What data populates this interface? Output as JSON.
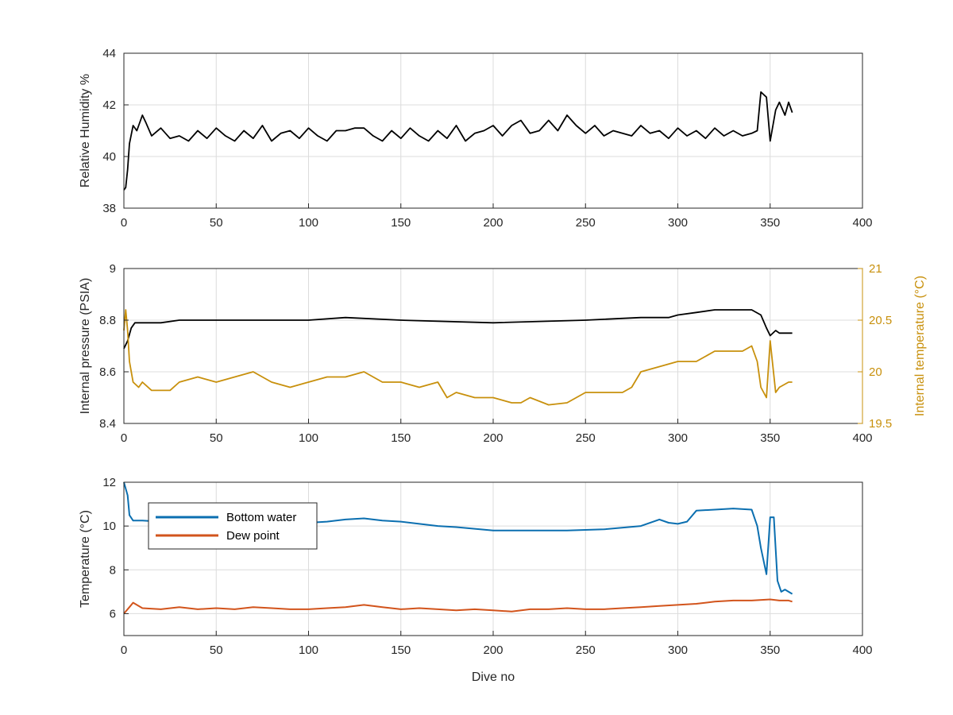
{
  "colors": {
    "frame": "#262626",
    "grid": "#dcdcdc",
    "black_series": "#000000",
    "temp_series": "#c8900c",
    "bottom_water": "#0b6fb0",
    "dew_point": "#d2541c"
  },
  "chart_data": [
    {
      "type": "line",
      "title": "",
      "xlabel": "",
      "ylabel": "Relative Humidity %",
      "xlim": [
        0,
        400
      ],
      "ylim": [
        38,
        44
      ],
      "xticks": [
        "0",
        "50",
        "100",
        "150",
        "200",
        "250",
        "300",
        "350",
        "400"
      ],
      "yticks": [
        "38",
        "40",
        "42",
        "44"
      ],
      "grid": true,
      "series": [
        {
          "name": "",
          "color": "#000000",
          "x": [
            0,
            1,
            2,
            3,
            5,
            7,
            10,
            12,
            15,
            20,
            25,
            30,
            35,
            40,
            45,
            50,
            55,
            60,
            65,
            70,
            75,
            80,
            85,
            90,
            95,
            100,
            105,
            110,
            115,
            120,
            125,
            130,
            135,
            140,
            145,
            150,
            155,
            160,
            165,
            170,
            175,
            180,
            185,
            190,
            195,
            200,
            205,
            210,
            215,
            220,
            225,
            230,
            235,
            240,
            245,
            250,
            255,
            260,
            265,
            270,
            275,
            280,
            285,
            290,
            295,
            300,
            305,
            310,
            315,
            320,
            325,
            330,
            335,
            340,
            343,
            345,
            348,
            350,
            353,
            355,
            358,
            360,
            362
          ],
          "y": [
            38.7,
            38.8,
            39.5,
            40.5,
            41.2,
            41.0,
            41.6,
            41.3,
            40.8,
            41.1,
            40.7,
            40.8,
            40.6,
            41.0,
            40.7,
            41.1,
            40.8,
            40.6,
            41.0,
            40.7,
            41.2,
            40.6,
            40.9,
            41.0,
            40.7,
            41.1,
            40.8,
            40.6,
            41.0,
            41.0,
            41.1,
            41.1,
            40.8,
            40.6,
            41.0,
            40.7,
            41.1,
            40.8,
            40.6,
            41.0,
            40.7,
            41.2,
            40.6,
            40.9,
            41.0,
            41.2,
            40.8,
            41.2,
            41.4,
            40.9,
            41.0,
            41.4,
            41.0,
            41.6,
            41.2,
            40.9,
            41.2,
            40.8,
            41.0,
            40.9,
            40.8,
            41.2,
            40.9,
            41.0,
            40.7,
            41.1,
            40.8,
            41.0,
            40.7,
            41.1,
            40.8,
            41.0,
            40.8,
            40.9,
            41.0,
            42.5,
            42.3,
            40.6,
            41.8,
            42.1,
            41.6,
            42.1,
            41.7
          ]
        }
      ]
    },
    {
      "type": "line",
      "title": "",
      "xlabel": "",
      "ylabel": "Internal pressure (PSIA)",
      "ylabel_right": "Internal temperature (°C)",
      "xlim": [
        0,
        400
      ],
      "ylim": [
        8.4,
        9.0
      ],
      "ylim_right": [
        19.5,
        21.0
      ],
      "xticks": [
        "0",
        "50",
        "100",
        "150",
        "200",
        "250",
        "300",
        "350",
        "400"
      ],
      "yticks": [
        "8.4",
        "8.6",
        "8.8",
        "9"
      ],
      "yticks_right": [
        "19.5",
        "20",
        "20.5",
        "21"
      ],
      "grid": true,
      "series": [
        {
          "name": "",
          "axis": "left",
          "color": "#000000",
          "x": [
            0,
            2,
            4,
            6,
            10,
            20,
            30,
            50,
            100,
            120,
            150,
            200,
            250,
            280,
            295,
            300,
            310,
            320,
            340,
            345,
            348,
            350,
            353,
            355,
            360,
            362
          ],
          "y": [
            8.69,
            8.72,
            8.77,
            8.79,
            8.79,
            8.79,
            8.8,
            8.8,
            8.8,
            8.81,
            8.8,
            8.79,
            8.8,
            8.81,
            8.81,
            8.82,
            8.83,
            8.84,
            8.84,
            8.82,
            8.77,
            8.74,
            8.76,
            8.75,
            8.75,
            8.75
          ]
        },
        {
          "name": "",
          "axis": "right",
          "color": "#c8900c",
          "x": [
            0,
            1,
            2,
            3,
            5,
            8,
            10,
            15,
            20,
            25,
            30,
            40,
            50,
            60,
            70,
            80,
            90,
            100,
            110,
            120,
            130,
            140,
            150,
            160,
            170,
            175,
            180,
            190,
            200,
            210,
            215,
            220,
            230,
            240,
            250,
            260,
            270,
            275,
            280,
            290,
            300,
            310,
            320,
            330,
            335,
            340,
            343,
            345,
            348,
            350,
            353,
            355,
            360,
            362
          ],
          "y": [
            20.4,
            20.6,
            20.4,
            20.1,
            19.9,
            19.85,
            19.9,
            19.82,
            19.82,
            19.82,
            19.9,
            19.95,
            19.9,
            19.95,
            20.0,
            19.9,
            19.85,
            19.9,
            19.95,
            19.95,
            20.0,
            19.9,
            19.9,
            19.85,
            19.9,
            19.75,
            19.8,
            19.75,
            19.75,
            19.7,
            19.7,
            19.75,
            19.68,
            19.7,
            19.8,
            19.8,
            19.8,
            19.85,
            20.0,
            20.05,
            20.1,
            20.1,
            20.2,
            20.2,
            20.2,
            20.25,
            20.1,
            19.85,
            19.75,
            20.3,
            19.8,
            19.85,
            19.9,
            19.9
          ]
        }
      ]
    },
    {
      "type": "line",
      "title": "",
      "xlabel": "Dive no",
      "ylabel": "Temperature (°C)",
      "xlim": [
        0,
        400
      ],
      "ylim": [
        5,
        12
      ],
      "xticks": [
        "0",
        "50",
        "100",
        "150",
        "200",
        "250",
        "300",
        "350",
        "400"
      ],
      "yticks": [
        "6",
        "8",
        "10",
        "12"
      ],
      "grid": true,
      "legend_position": "top-left",
      "series": [
        {
          "name": "Bottom water",
          "color": "#0b6fb0",
          "x": [
            0,
            2,
            3,
            5,
            10,
            20,
            30,
            50,
            80,
            100,
            110,
            120,
            130,
            140,
            150,
            160,
            170,
            180,
            200,
            220,
            240,
            260,
            280,
            290,
            295,
            300,
            305,
            310,
            320,
            330,
            340,
            343,
            345,
            348,
            350,
            352,
            354,
            356,
            358,
            360,
            362
          ],
          "y": [
            12.0,
            11.4,
            10.5,
            10.25,
            10.25,
            10.2,
            10.2,
            10.1,
            10.1,
            10.15,
            10.2,
            10.3,
            10.35,
            10.25,
            10.2,
            10.1,
            10.0,
            9.95,
            9.8,
            9.8,
            9.8,
            9.85,
            10.0,
            10.3,
            10.15,
            10.1,
            10.2,
            10.7,
            10.75,
            10.8,
            10.75,
            10.0,
            9.0,
            7.8,
            10.4,
            10.4,
            7.5,
            7.0,
            7.1,
            7.0,
            6.9
          ]
        },
        {
          "name": "Dew point",
          "color": "#d2541c",
          "x": [
            0,
            3,
            5,
            10,
            20,
            30,
            40,
            50,
            60,
            70,
            80,
            90,
            100,
            110,
            120,
            130,
            140,
            150,
            160,
            170,
            180,
            190,
            200,
            210,
            220,
            230,
            240,
            250,
            260,
            270,
            280,
            290,
            300,
            310,
            320,
            330,
            340,
            350,
            355,
            360,
            362
          ],
          "y": [
            6.0,
            6.3,
            6.5,
            6.25,
            6.2,
            6.3,
            6.2,
            6.25,
            6.2,
            6.3,
            6.25,
            6.2,
            6.2,
            6.25,
            6.3,
            6.4,
            6.3,
            6.2,
            6.25,
            6.2,
            6.15,
            6.2,
            6.15,
            6.1,
            6.2,
            6.2,
            6.25,
            6.2,
            6.2,
            6.25,
            6.3,
            6.35,
            6.4,
            6.45,
            6.55,
            6.6,
            6.6,
            6.65,
            6.6,
            6.6,
            6.55
          ]
        }
      ]
    }
  ]
}
